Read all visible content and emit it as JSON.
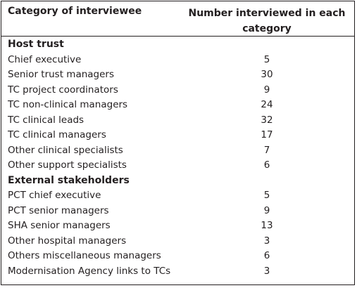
{
  "header": {
    "col1": "Category of interviewee",
    "col2_line1": "Number interviewed in each",
    "col2_line2": "category"
  },
  "sections": [
    {
      "title": "Host trust",
      "rows": [
        {
          "label": "Chief executive",
          "value": "5"
        },
        {
          "label": "Senior trust managers",
          "value": "30"
        },
        {
          "label": "TC project coordinators",
          "value": "9"
        },
        {
          "label": "TC non-clinical managers",
          "value": "24"
        },
        {
          "label": "TC clinical leads",
          "value": "32"
        },
        {
          "label": "TC clinical managers",
          "value": "17"
        },
        {
          "label": "Other clinical specialists",
          "value": "7"
        },
        {
          "label": "Other support specialists",
          "value": "6"
        }
      ]
    },
    {
      "title": "External stakeholders",
      "rows": [
        {
          "label": "PCT chief executive",
          "value": "5"
        },
        {
          "label": "PCT senior managers",
          "value": "9"
        },
        {
          "label": "SHA senior managers",
          "value": "13"
        },
        {
          "label": "Other hospital managers",
          "value": "3"
        },
        {
          "label": "Others miscellaneous managers",
          "value": "6"
        },
        {
          "label": "Modernisation Agency links to TCs",
          "value": "3"
        }
      ]
    }
  ]
}
